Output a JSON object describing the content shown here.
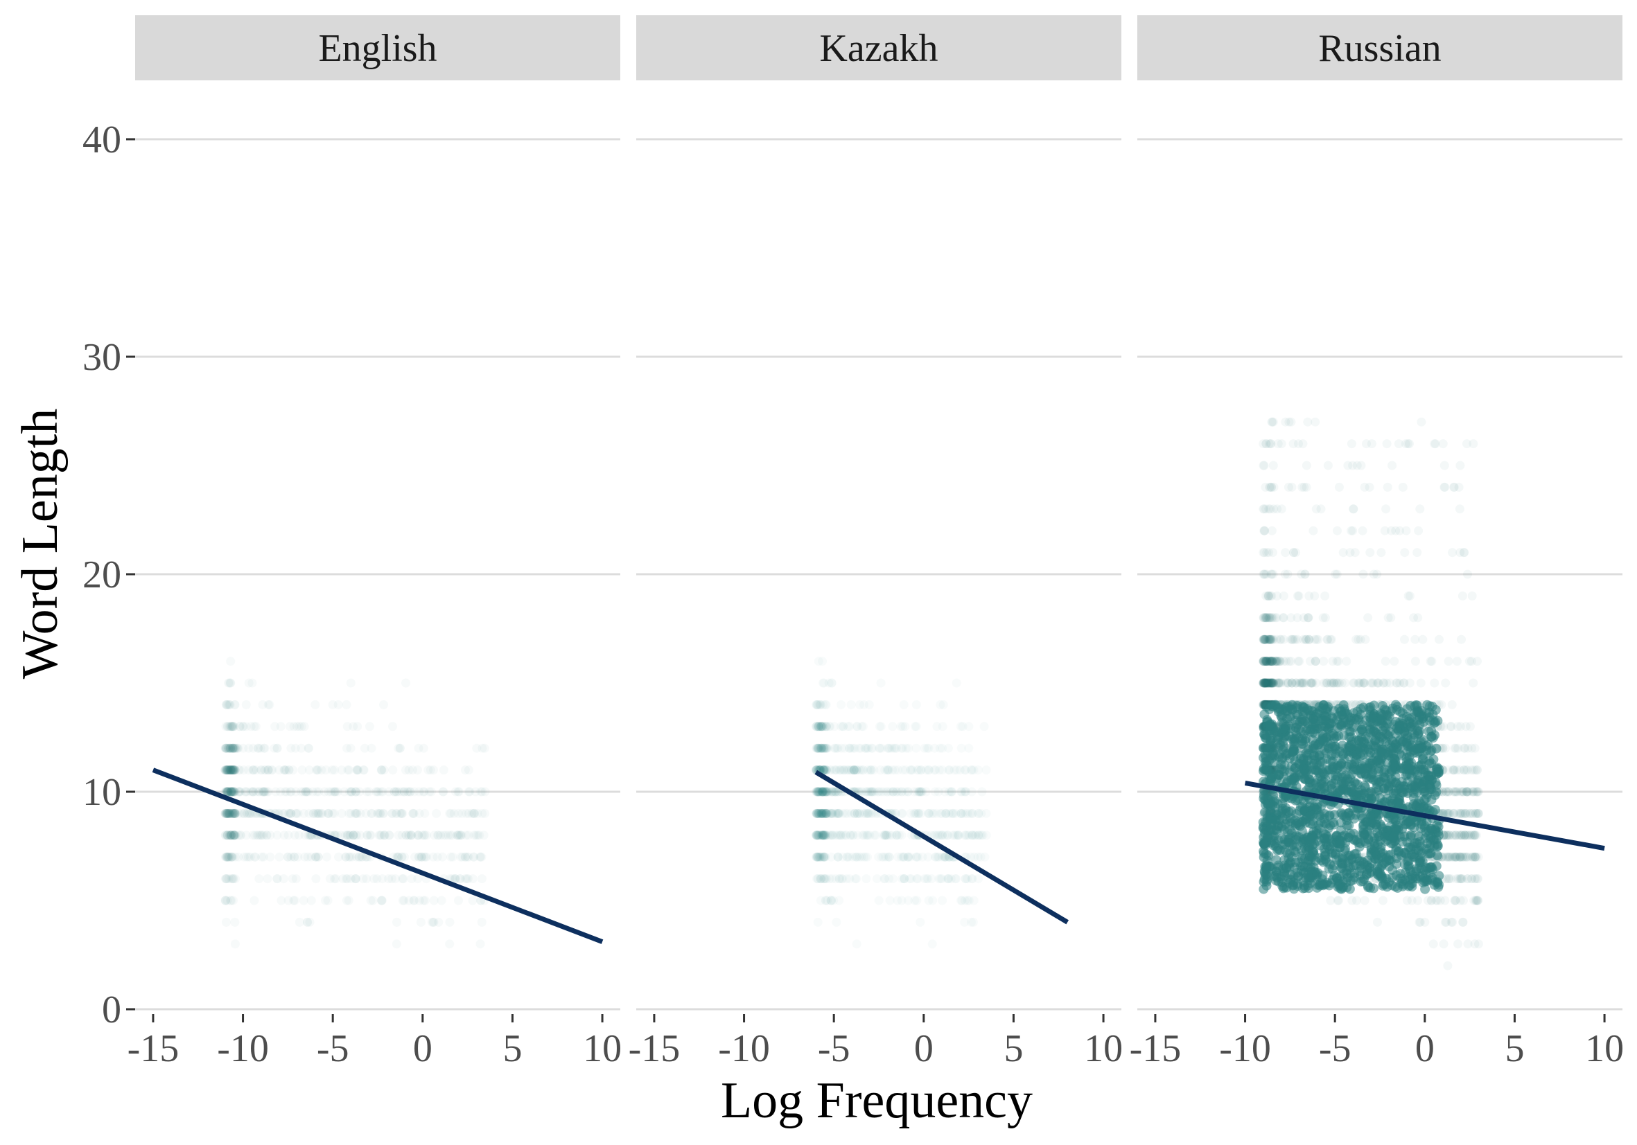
{
  "chart_data": {
    "type": "scatter",
    "facets": [
      {
        "name": "English",
        "x_range": [
          -11,
          3.5
        ],
        "y_center": [
          6,
          10
        ],
        "dense": false,
        "intensity": 0.5,
        "fit": {
          "x": [
            -15,
            10
          ],
          "y": [
            11.0,
            3.1
          ]
        }
      },
      {
        "name": "Kazakh",
        "x_range": [
          -6,
          3.5
        ],
        "y_center": [
          7,
          10
        ],
        "dense": false,
        "intensity": 0.35,
        "fit": {
          "x": [
            -6,
            8
          ],
          "y": [
            10.9,
            4.0
          ]
        }
      },
      {
        "name": "Russian",
        "x_range": [
          -9,
          3
        ],
        "y_center": [
          5,
          13
        ],
        "dense": true,
        "intensity": 1.0,
        "fit": {
          "x": [
            -10,
            10
          ],
          "y": [
            10.4,
            7.4
          ]
        }
      }
    ],
    "xlabel": "Log Frequency",
    "ylabel": "Word Length",
    "xlim": [
      -16,
      11
    ],
    "ylim": [
      0,
      42
    ],
    "x_ticks": [
      -15,
      -10,
      -5,
      0,
      5,
      10
    ],
    "x_tick_labels": [
      "-15",
      "-10",
      "-5",
      "0",
      "5",
      "10"
    ],
    "y_ticks": [
      0,
      10,
      20,
      30,
      40
    ],
    "y_tick_labels": [
      "0",
      "10",
      "20",
      "30",
      "40"
    ],
    "colors": {
      "points": "#2a7f7f",
      "fit_line": "#0d2f5e",
      "strip_bg": "#d9d9d9",
      "grid": "#dcdcdc"
    }
  }
}
